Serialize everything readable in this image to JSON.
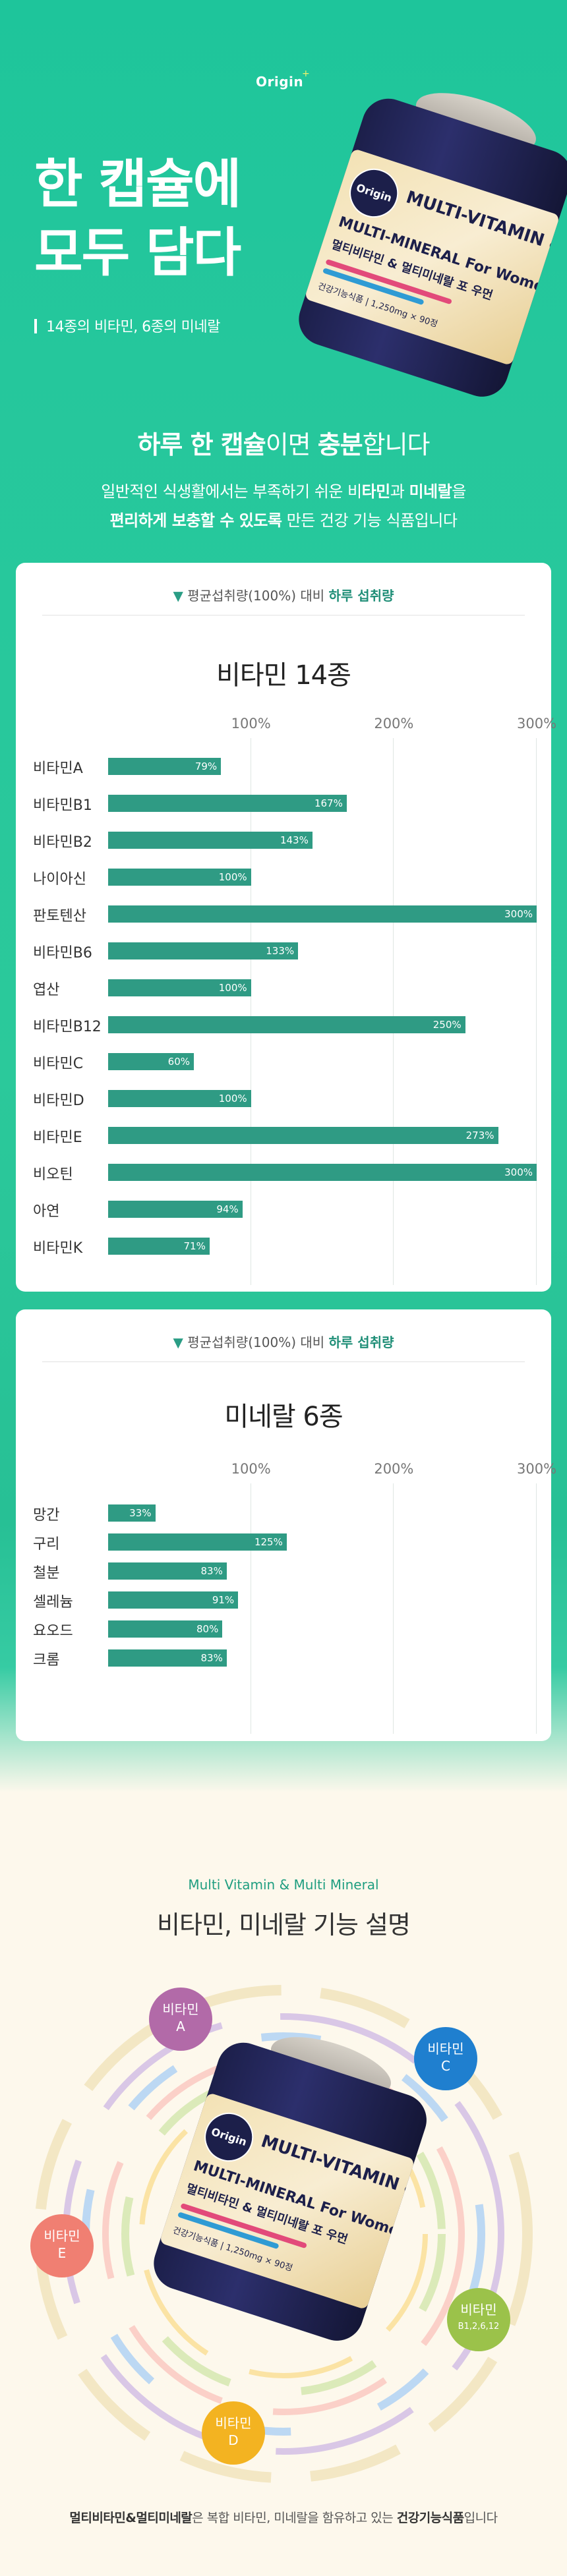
{
  "hero": {
    "brand": "Origin",
    "brand_star": "+",
    "headline_line1": "한 캡슐에",
    "headline_line2": "모두 담다",
    "subline": "14종의 비타민, 6종의 미네랄"
  },
  "bottle": {
    "logo": "Origin",
    "label_line1": "MULTI-VITAMIN &",
    "label_line2": "MULTI-MINERAL For Women",
    "label_line3": "멀티비타민 & 멀티미네랄 포 우먼",
    "label_small": "건강기능식품 | 1,250mg × 90정"
  },
  "intro": {
    "title_part1": "하루 한 캡슐",
    "title_part2": "이면 ",
    "title_part3": "충분",
    "title_part4": "합니다",
    "desc_line1_a": "일반적인 식생활에서는 부족하기 쉬운 비",
    "desc_line1_b": "타민",
    "desc_line1_c": "과 ",
    "desc_line1_d": "미네랄",
    "desc_line1_e": "을",
    "desc_line2_a": "편리하게 보충할 수 있도록",
    "desc_line2_b": " 만든 건강 기능 식품입니다"
  },
  "vitamin_card": {
    "head_tri": "▼",
    "head_text": " 평균섭취량(100%) 대비 ",
    "head_bold": "하루 섭취량",
    "title": "비타민 14종"
  },
  "mineral_card": {
    "head_tri": "▼",
    "head_text": " 평균섭취량(100%) 대비 ",
    "head_bold": "하루 섭취량",
    "title": "미네랄 6종"
  },
  "chart_data": [
    {
      "type": "bar",
      "orientation": "horizontal",
      "title": "비타민 14종",
      "xlabel": "",
      "ylabel": "",
      "xlim": [
        0,
        300
      ],
      "x_ticks": [
        "100%",
        "200%",
        "300%"
      ],
      "categories": [
        "비타민A",
        "비타민B1",
        "비타민B2",
        "나이아신",
        "판토텐산",
        "비타민B6",
        "엽산",
        "비타민B12",
        "비타민C",
        "비타민D",
        "비타민E",
        "비오틴",
        "아연",
        "비타민K"
      ],
      "values": [
        79,
        167,
        143,
        100,
        300,
        133,
        100,
        250,
        60,
        100,
        273,
        300,
        94,
        71
      ],
      "value_labels": [
        "79%",
        "167%",
        "143%",
        "100%",
        "300%",
        "133%",
        "100%",
        "250%",
        "60%",
        "100%",
        "273%",
        "300%",
        "94%",
        "71%"
      ],
      "color": "#2f9b84",
      "grid": true
    },
    {
      "type": "bar",
      "orientation": "horizontal",
      "title": "미네랄 6종",
      "xlabel": "",
      "ylabel": "",
      "xlim": [
        0,
        300
      ],
      "x_ticks": [
        "100%",
        "200%",
        "300%"
      ],
      "categories": [
        "망간",
        "구리",
        "철분",
        "셀레늄",
        "요오드",
        "크롬"
      ],
      "values": [
        33,
        125,
        83,
        91,
        80,
        83
      ],
      "value_labels": [
        "33%",
        "125%",
        "83%",
        "91%",
        "80%",
        "83%"
      ],
      "color": "#2f9b84",
      "grid": true
    }
  ],
  "functions": {
    "eyebrow": "Multi Vitamin & Multi Mineral",
    "title": "비타민, 미네랄 기능 설명",
    "bubbles": [
      {
        "line1": "비타민",
        "line2": "A",
        "color": "#b26aa8"
      },
      {
        "line1": "비타민",
        "line2": "C",
        "color": "#1f7fcf"
      },
      {
        "line1": "비타민",
        "line2": "E",
        "color": "#f07f72"
      },
      {
        "line1": "비타민",
        "line2": "B1,2,6,12",
        "color": "#9bc24a"
      },
      {
        "line1": "비타민",
        "line2": "D",
        "color": "#f3b321"
      }
    ],
    "caption_bold1": "멀티비타민&멀티미네랄",
    "caption_mid": "은 복합 비타민, 미네랄을 함유하고 있는 ",
    "caption_bold2": "건강기능식품",
    "caption_end": "입니다"
  }
}
